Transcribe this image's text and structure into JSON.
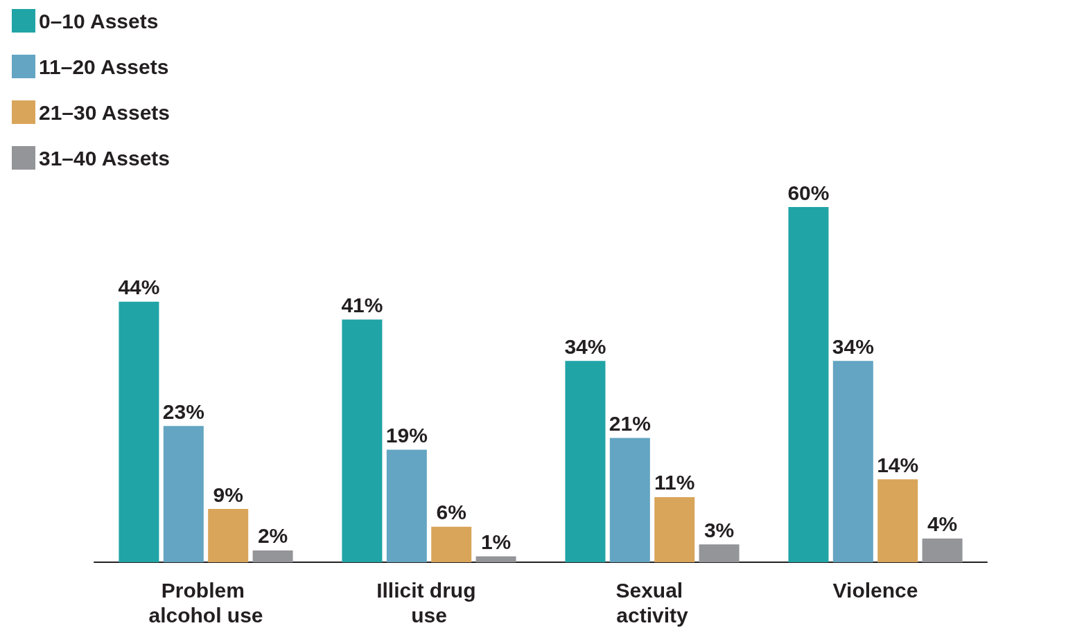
{
  "chart_data": {
    "type": "bar",
    "categories": [
      "Problem alcohol use",
      "Illicit drug use",
      "Sexual activity",
      "Violence"
    ],
    "series": [
      {
        "name": "0–10 Assets",
        "color": "#20a4a6",
        "values": [
          44,
          41,
          34,
          60
        ],
        "value_labels": [
          "44%",
          "41%",
          "34%",
          "60%"
        ]
      },
      {
        "name": "11–20 Assets",
        "color": "#63a5c2",
        "values": [
          23,
          19,
          21,
          34
        ],
        "value_labels": [
          "23%",
          "19%",
          "21%",
          "34%"
        ]
      },
      {
        "name": "21–30 Assets",
        "color": "#d9a55a",
        "values": [
          9,
          6,
          11,
          14
        ],
        "value_labels": [
          "9%",
          "6%",
          "11%",
          "14%"
        ]
      },
      {
        "name": "31–40 Assets",
        "color": "#939598",
        "values": [
          2,
          1,
          3,
          4
        ],
        "value_labels": [
          "2%",
          "1%",
          "3%",
          "4%"
        ]
      }
    ],
    "legend": "top left",
    "grid": false
  }
}
